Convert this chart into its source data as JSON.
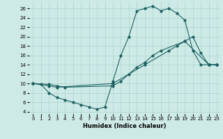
{
  "xlabel": "Humidex (Indice chaleur)",
  "bg_color": "#ceeae6",
  "grid_color": "#aad4ce",
  "line_color": "#1a6060",
  "xlim": [
    -0.5,
    23.5
  ],
  "ylim": [
    3.5,
    27.5
  ],
  "xticks": [
    0,
    1,
    2,
    3,
    4,
    5,
    6,
    7,
    8,
    9,
    10,
    11,
    12,
    13,
    14,
    15,
    16,
    17,
    18,
    19,
    20,
    21,
    22,
    23
  ],
  "yticks": [
    4,
    6,
    8,
    10,
    12,
    14,
    16,
    18,
    20,
    22,
    24,
    26
  ],
  "line1_x": [
    0,
    1,
    2,
    3,
    4,
    5,
    6,
    7,
    8,
    9,
    10,
    11,
    12,
    13,
    14,
    15,
    16,
    17,
    18,
    19,
    20,
    21,
    22,
    23
  ],
  "line1_y": [
    10,
    9.8,
    8,
    7,
    6.5,
    6,
    5.5,
    5,
    4.5,
    5,
    10.5,
    16,
    20,
    25.5,
    26,
    26.5,
    25.5,
    26,
    25,
    23.5,
    17,
    14,
    14,
    14
  ],
  "line2_x": [
    0,
    2,
    3,
    4,
    10,
    11,
    12,
    13,
    14,
    15,
    16,
    19,
    20,
    21,
    22,
    23
  ],
  "line2_y": [
    10,
    9.8,
    9.5,
    9.2,
    9.5,
    10.5,
    12,
    13.5,
    14.5,
    16,
    17,
    19,
    20,
    16.5,
    14,
    14
  ],
  "line3_x": [
    0,
    2,
    3,
    10,
    14,
    17,
    18,
    19,
    22,
    23
  ],
  "line3_y": [
    10,
    9.5,
    9.2,
    10,
    14,
    17,
    18,
    19,
    14,
    14
  ]
}
